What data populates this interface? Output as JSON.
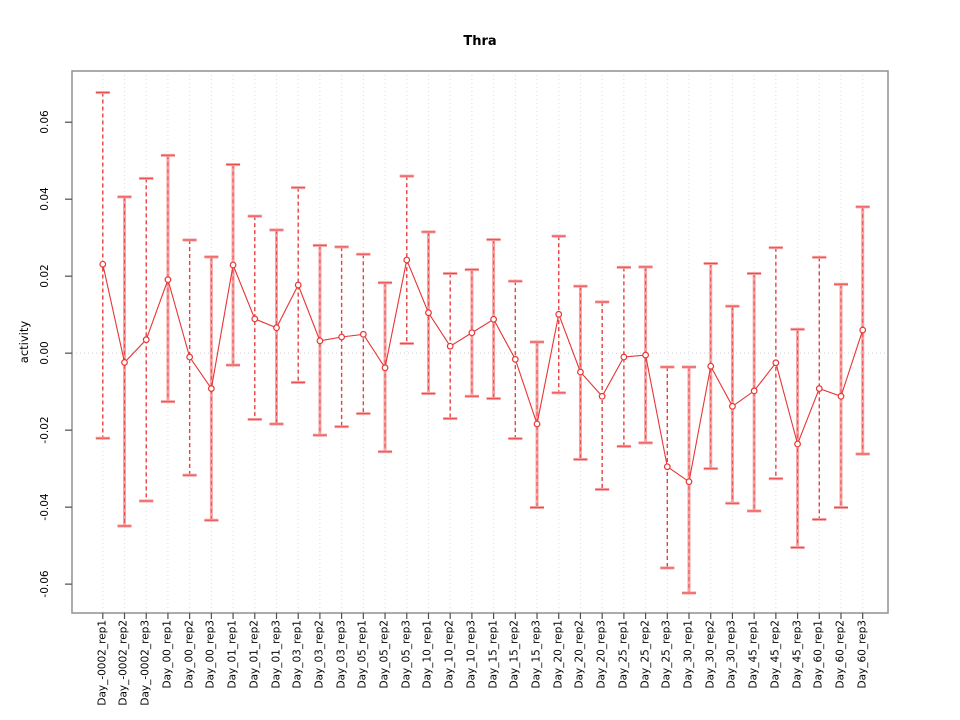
{
  "chart_data": {
    "type": "line",
    "title": "Thra",
    "xlabel": "",
    "ylabel": "activity",
    "legend": "none",
    "grid": "vertical-dotted",
    "zero_line_dotted": true,
    "yticks": [
      -0.06,
      -0.04,
      -0.02,
      0.0,
      0.02,
      0.04,
      0.06
    ],
    "ylim": [
      -0.0675,
      0.0733
    ],
    "categories": [
      "Day_-0002_rep1",
      "Day_-0002_rep2",
      "Day_-0002_rep3",
      "Day_00_rep1",
      "Day_00_rep2",
      "Day_00_rep3",
      "Day_01_rep1",
      "Day_01_rep2",
      "Day_01_rep3",
      "Day_03_rep1",
      "Day_03_rep2",
      "Day_03_rep3",
      "Day_05_rep1",
      "Day_05_rep2",
      "Day_05_rep3",
      "Day_10_rep1",
      "Day_10_rep2",
      "Day_10_rep3",
      "Day_15_rep1",
      "Day_15_rep2",
      "Day_15_rep3",
      "Day_20_rep1",
      "Day_20_rep2",
      "Day_20_rep3",
      "Day_25_rep1",
      "Day_25_rep2",
      "Day_25_rep3",
      "Day_30_rep1",
      "Day_30_rep2",
      "Day_30_rep3",
      "Day_45_rep1",
      "Day_45_rep2",
      "Day_45_rep3",
      "Day_60_rep1",
      "Day_60_rep2",
      "Day_60_rep3"
    ],
    "series": [
      {
        "name": "activity",
        "values": [
          0.0231,
          -0.0024,
          0.0035,
          0.0191,
          -0.001,
          -0.0092,
          0.0229,
          0.0089,
          0.0066,
          0.0177,
          0.0032,
          0.0042,
          0.0049,
          -0.0038,
          0.0242,
          0.0105,
          0.0018,
          0.0053,
          0.0088,
          -0.0016,
          -0.0184,
          0.0101,
          -0.0049,
          -0.0112,
          -0.001,
          -0.0005,
          -0.0295,
          -0.0334,
          -0.0034,
          -0.0138,
          -0.0098,
          -0.0025,
          -0.0236,
          -0.0092,
          -0.0112,
          0.006
        ]
      }
    ],
    "error_low": [
      -0.0221,
      -0.0449,
      -0.0384,
      -0.0126,
      -0.0317,
      -0.0434,
      -0.0031,
      -0.0172,
      -0.0184,
      -0.0076,
      -0.0213,
      -0.0191,
      -0.0157,
      -0.0256,
      0.0025,
      -0.0105,
      -0.017,
      -0.0112,
      -0.0118,
      -0.0222,
      -0.0401,
      -0.0103,
      -0.0276,
      -0.0354,
      -0.0242,
      -0.0233,
      -0.0558,
      -0.0623,
      -0.03,
      -0.039,
      -0.041,
      -0.0326,
      -0.0505,
      -0.0432,
      -0.0401,
      -0.0262
    ],
    "error_high": [
      0.0677,
      0.0406,
      0.0454,
      0.0514,
      0.0294,
      0.025,
      0.049,
      0.0356,
      0.032,
      0.043,
      0.028,
      0.0276,
      0.0257,
      0.0183,
      0.046,
      0.0315,
      0.0207,
      0.0217,
      0.0295,
      0.0187,
      0.0029,
      0.0304,
      0.0174,
      0.0133,
      0.0223,
      0.0224,
      -0.0036,
      -0.0036,
      0.0233,
      0.0122,
      0.0207,
      0.0274,
      0.0062,
      0.0249,
      0.0179,
      0.038
    ],
    "bar_styles": [
      "dashed",
      "solid",
      "dashed",
      "solid",
      "dashed",
      "solid",
      "solid",
      "dashed",
      "solid",
      "dashed",
      "solid",
      "dashed",
      "dashed",
      "solid",
      "dashed",
      "solid",
      "dashed",
      "solid",
      "solid",
      "dashed",
      "solid",
      "dashed",
      "solid",
      "dashed",
      "dashed",
      "solid",
      "dashed",
      "solid",
      "solid",
      "solid",
      "solid",
      "dashed",
      "solid",
      "dashed",
      "solid",
      "solid"
    ],
    "colors": {
      "line": "#e83535",
      "marker_stroke": "#e83535",
      "error_solid": "#f7a2a2",
      "error_dash": "#e84040",
      "box": "#919191",
      "tick": "#4d4d4d",
      "grid": "#dcdcdc",
      "zero_line": "#cfcfcf",
      "text": "#000000"
    }
  }
}
